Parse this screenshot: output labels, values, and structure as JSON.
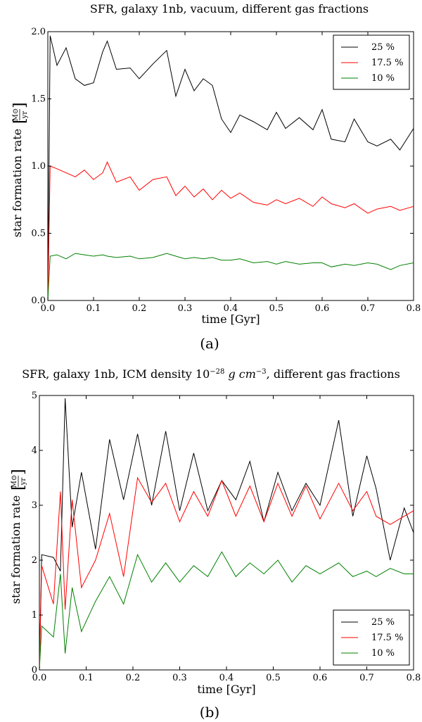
{
  "chart_data": [
    {
      "id": "a",
      "type": "line",
      "title": "SFR, galaxy 1nb, vacuum, different gas fractions",
      "xlabel": "time [Gyr]",
      "ylabel": "star formation rate",
      "yunit_num": "M⊙",
      "yunit_den": "yr",
      "caption": "(a)",
      "xlim": [
        0,
        0.8
      ],
      "ylim": [
        0,
        2.0
      ],
      "xticks": [
        "0.0",
        "0.1",
        "0.2",
        "0.3",
        "0.4",
        "0.5",
        "0.6",
        "0.7",
        "0.8"
      ],
      "yticks": [
        "0.0",
        "0.5",
        "1.0",
        "1.5",
        "2.0"
      ],
      "legend_position": "top-right",
      "x": [
        0.0,
        0.005,
        0.02,
        0.04,
        0.06,
        0.08,
        0.1,
        0.12,
        0.13,
        0.15,
        0.18,
        0.2,
        0.23,
        0.26,
        0.28,
        0.3,
        0.32,
        0.34,
        0.36,
        0.38,
        0.4,
        0.42,
        0.45,
        0.48,
        0.5,
        0.52,
        0.55,
        0.58,
        0.6,
        0.62,
        0.65,
        0.67,
        0.7,
        0.72,
        0.75,
        0.77,
        0.8
      ],
      "series": [
        {
          "name": "25 %",
          "color": "#000000",
          "values": [
            0.0,
            1.97,
            1.75,
            1.88,
            1.65,
            1.6,
            1.62,
            1.85,
            1.93,
            1.72,
            1.73,
            1.65,
            1.76,
            1.86,
            1.52,
            1.72,
            1.56,
            1.65,
            1.6,
            1.35,
            1.25,
            1.38,
            1.33,
            1.27,
            1.4,
            1.28,
            1.36,
            1.27,
            1.42,
            1.2,
            1.18,
            1.35,
            1.18,
            1.15,
            1.2,
            1.12,
            1.28
          ]
        },
        {
          "name": "17.5 %",
          "color": "#ff0000",
          "values": [
            0.0,
            1.0,
            0.98,
            0.95,
            0.92,
            0.97,
            0.9,
            0.95,
            1.03,
            0.88,
            0.92,
            0.82,
            0.9,
            0.92,
            0.78,
            0.85,
            0.77,
            0.83,
            0.75,
            0.82,
            0.76,
            0.8,
            0.73,
            0.71,
            0.75,
            0.72,
            0.76,
            0.7,
            0.77,
            0.72,
            0.69,
            0.72,
            0.65,
            0.68,
            0.7,
            0.67,
            0.7
          ]
        },
        {
          "name": "10 %",
          "color": "#008000",
          "values": [
            0.0,
            0.33,
            0.34,
            0.31,
            0.35,
            0.34,
            0.33,
            0.34,
            0.33,
            0.32,
            0.33,
            0.31,
            0.32,
            0.35,
            0.33,
            0.31,
            0.32,
            0.31,
            0.32,
            0.3,
            0.3,
            0.31,
            0.28,
            0.29,
            0.27,
            0.29,
            0.27,
            0.28,
            0.28,
            0.25,
            0.27,
            0.26,
            0.28,
            0.27,
            0.23,
            0.26,
            0.28
          ]
        }
      ]
    },
    {
      "id": "b",
      "type": "line",
      "title_pre": "SFR, galaxy 1nb, ICM density 10",
      "title_exp": "−28",
      "title_post": " g cm",
      "title_exp2": "−3",
      "title_end": ", different gas fractions",
      "xlabel": "time [Gyr]",
      "ylabel": "star formation rate",
      "yunit_num": "M⊙",
      "yunit_den": "yr",
      "caption": "(b)",
      "xlim": [
        0,
        0.8
      ],
      "ylim": [
        0,
        5
      ],
      "xticks": [
        "0.0",
        "0.1",
        "0.2",
        "0.3",
        "0.4",
        "0.5",
        "0.6",
        "0.7",
        "0.8"
      ],
      "yticks": [
        "0",
        "1",
        "2",
        "3",
        "4",
        "5"
      ],
      "legend_position": "bottom-right",
      "x": [
        0.0,
        0.005,
        0.03,
        0.045,
        0.055,
        0.07,
        0.09,
        0.12,
        0.15,
        0.18,
        0.21,
        0.24,
        0.27,
        0.3,
        0.33,
        0.36,
        0.39,
        0.42,
        0.45,
        0.48,
        0.51,
        0.54,
        0.57,
        0.6,
        0.64,
        0.67,
        0.7,
        0.72,
        0.75,
        0.78,
        0.8
      ],
      "series": [
        {
          "name": "25 %",
          "color": "#000000",
          "values": [
            0.0,
            2.1,
            2.05,
            1.8,
            4.95,
            2.6,
            3.6,
            2.2,
            4.2,
            3.1,
            4.3,
            3.0,
            4.35,
            2.9,
            3.95,
            2.9,
            3.45,
            3.1,
            3.8,
            2.7,
            3.6,
            2.9,
            3.4,
            3.0,
            4.55,
            2.8,
            3.9,
            3.3,
            2.0,
            2.95,
            2.5
          ]
        },
        {
          "name": "17.5 %",
          "color": "#ff0000",
          "values": [
            0.0,
            1.9,
            1.2,
            3.25,
            1.1,
            3.1,
            1.5,
            2.0,
            2.85,
            1.7,
            3.5,
            3.05,
            3.4,
            2.7,
            3.25,
            2.8,
            3.45,
            2.8,
            3.35,
            2.7,
            3.4,
            2.8,
            3.35,
            2.75,
            3.4,
            2.9,
            3.25,
            2.8,
            2.65,
            2.8,
            2.9
          ]
        },
        {
          "name": "10 %",
          "color": "#008000",
          "values": [
            0.0,
            0.8,
            0.6,
            1.75,
            0.3,
            1.5,
            0.7,
            1.25,
            1.7,
            1.2,
            2.1,
            1.6,
            1.95,
            1.6,
            1.9,
            1.7,
            2.15,
            1.7,
            1.95,
            1.75,
            2.0,
            1.6,
            1.9,
            1.75,
            1.95,
            1.7,
            1.8,
            1.7,
            1.85,
            1.75,
            1.75
          ]
        }
      ]
    }
  ]
}
